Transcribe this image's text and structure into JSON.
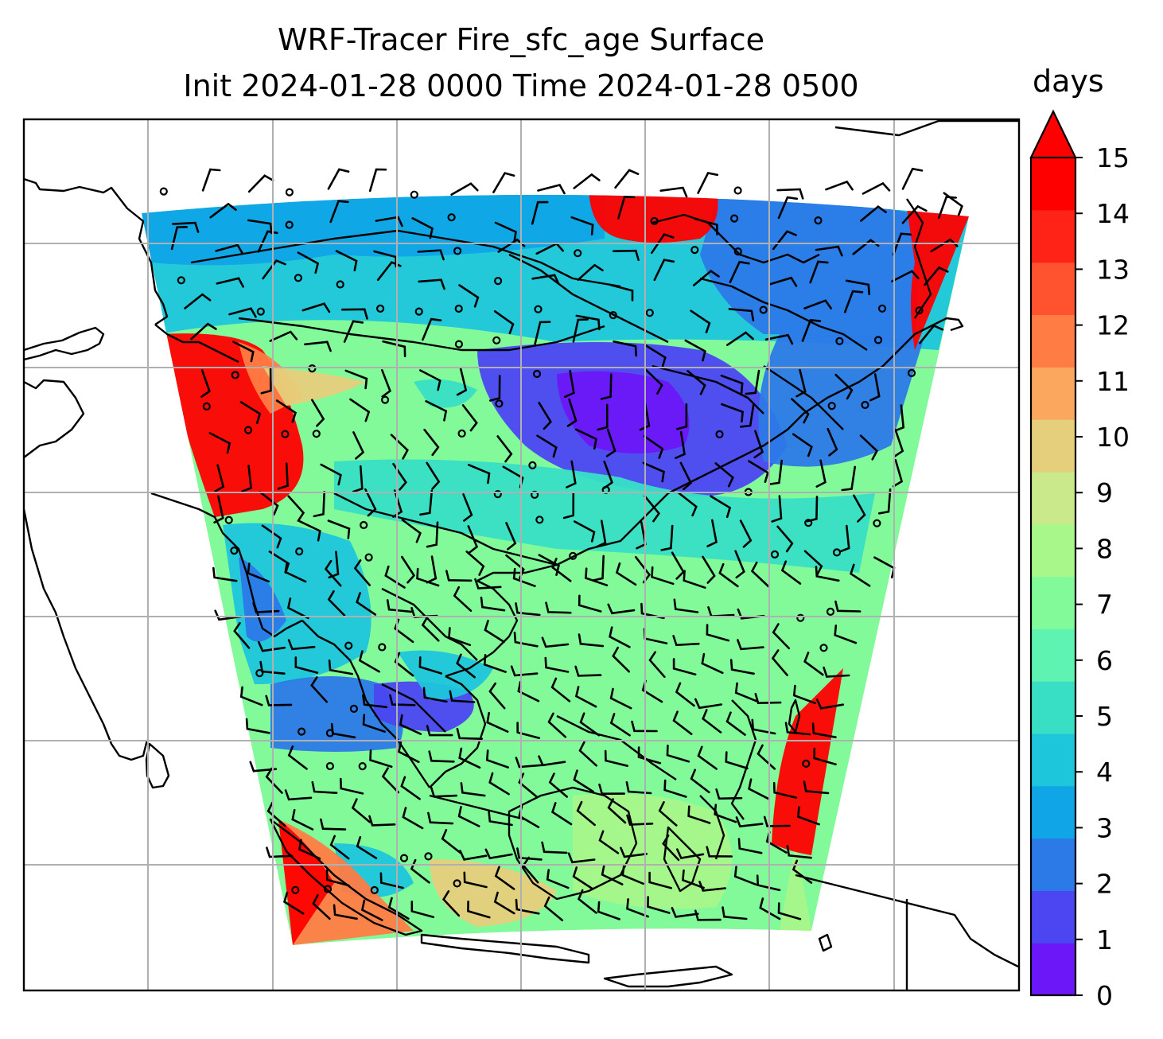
{
  "title": {
    "line1": "WRF-Tracer Fire_sfc_age Surface",
    "line2": "Init 2024-01-28 0000 Time 2024-01-28 0500"
  },
  "colorbar": {
    "unit": "days",
    "ticks": [
      "0",
      "1",
      "2",
      "3",
      "4",
      "5",
      "6",
      "7",
      "8",
      "9",
      "10",
      "11",
      "12",
      "13",
      "14",
      "15"
    ],
    "colors": [
      "#6b17f7",
      "#4b46f2",
      "#2c79e8",
      "#0fa5e6",
      "#1dc6db",
      "#38dfc5",
      "#5ef3b0",
      "#83fa99",
      "#a7f78b",
      "#c9e98b",
      "#e6cf7c",
      "#fba75e",
      "#ff7c45",
      "#ff5330",
      "#ff2317",
      "#ff0000"
    ],
    "extend": "max"
  },
  "map": {
    "projection_grid": "on",
    "field_colors": {
      "red": "#ff0000",
      "orange": "#ff7c45",
      "tan": "#e6cf7c",
      "cyan": "#1dc6db",
      "teal": "#38dfc5",
      "green": "#83fa99",
      "lightgreen": "#a7f78b",
      "blue": "#0fa5e6",
      "blue2": "#2c79e8",
      "purple": "#4b46f2",
      "violet": "#6b17f7"
    }
  }
}
